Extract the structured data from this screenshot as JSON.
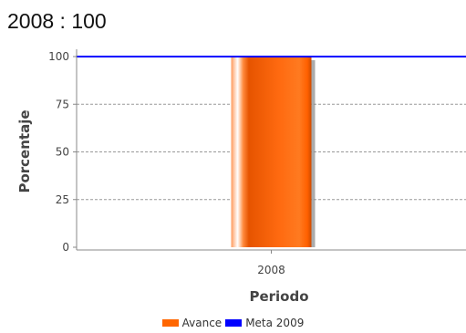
{
  "chart_data": {
    "type": "bar",
    "title": "2008 : 100",
    "xlabel": "Periodo",
    "ylabel": "Porcentaje",
    "categories": [
      "2008"
    ],
    "series": [
      {
        "name": "Avance",
        "values": [
          100
        ],
        "color": "#ff6600"
      }
    ],
    "reference_lines": [
      {
        "name": "Meta 2009",
        "value": 100,
        "color": "#0000ff"
      }
    ],
    "yticks": [
      0,
      25,
      50,
      75,
      100
    ],
    "ylim": [
      0,
      100
    ],
    "grid": true,
    "legend_position": "bottom"
  }
}
